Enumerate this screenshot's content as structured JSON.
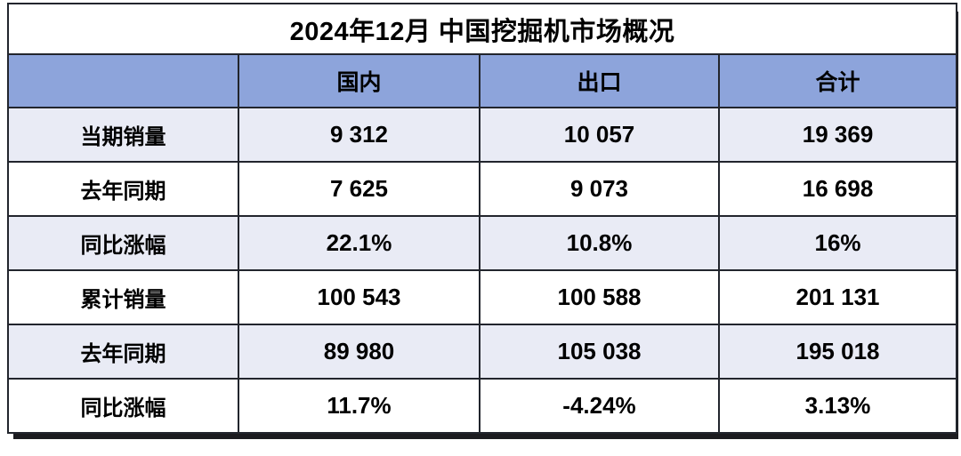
{
  "title": "2024年12月 中国挖掘机市场概况",
  "table": {
    "columns": [
      "",
      "国内",
      "出口",
      "合计"
    ],
    "rows": [
      {
        "label": "当期销量",
        "values": [
          "9 312",
          "10 057",
          "19 369"
        ]
      },
      {
        "label": "去年同期",
        "values": [
          "7 625",
          "9 073",
          "16 698"
        ]
      },
      {
        "label": "同比涨幅",
        "values": [
          "22.1%",
          "10.8%",
          "16%"
        ]
      },
      {
        "label": "累计销量",
        "values": [
          "100 543",
          "100 588",
          "201 131"
        ]
      },
      {
        "label": "去年同期",
        "values": [
          "89 980",
          "105 038",
          "195 018"
        ]
      },
      {
        "label": "同比涨幅",
        "values": [
          "11.7%",
          "-4.24%",
          "3.13%"
        ]
      }
    ]
  },
  "colors": {
    "header_bg": "#8DA4DB",
    "row_tint": "#E9EBF5",
    "border": "#22252D",
    "title_bg": "#FFFFFF",
    "text": "#000000"
  },
  "chart_data": {
    "type": "table",
    "title": "2024年12月 中国挖掘机市场概况",
    "columns": [
      "",
      "国内",
      "出口",
      "合计"
    ],
    "rows": [
      [
        "当期销量",
        "9 312",
        "10 057",
        "19 369"
      ],
      [
        "去年同期",
        "7 625",
        "9 073",
        "16 698"
      ],
      [
        "同比涨幅",
        "22.1%",
        "10.8%",
        "16%"
      ],
      [
        "累计销量",
        "100 543",
        "100 588",
        "201 131"
      ],
      [
        "去年同期",
        "89 980",
        "105 038",
        "195 018"
      ],
      [
        "同比涨幅",
        "11.7%",
        "-4.24%",
        "3.13%"
      ]
    ],
    "notes": {
      "number_format": "space as thousands separator",
      "row_striping": "rows 1,3,5 light lavender; rows 2,4,6 white",
      "header_style": "periwinkle blue background, bold black text"
    }
  }
}
